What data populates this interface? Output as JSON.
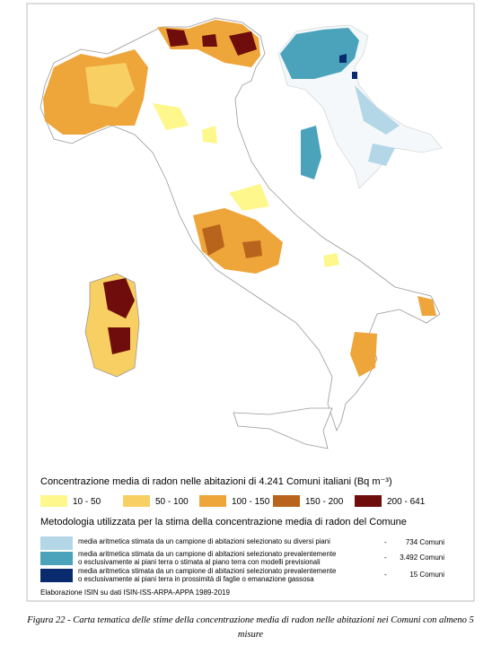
{
  "legend": {
    "title": "Concentrazione media di radon nelle abitazioni di 4.241 Comuni italiani (Bq m⁻³)",
    "classes": [
      {
        "label": "10 - 50",
        "color": "#fdf78c"
      },
      {
        "label": "50 - 100",
        "color": "#f8cf63"
      },
      {
        "label": "100 - 150",
        "color": "#eea53a"
      },
      {
        "label": "150 - 200",
        "color": "#b9641c"
      },
      {
        "label": "200 - 641",
        "color": "#6e0d0b"
      }
    ],
    "method_title": "Metodologia utilizzata per la stima della concentrazione media di radon del Comune",
    "separator": "-",
    "methods": [
      {
        "lines": [
          "media aritmetica stimata da un campione di abitazioni selezionato su diversi piani"
        ],
        "count": "734 Comuni",
        "color": "#b4d7e8"
      },
      {
        "lines": [
          "media aritmetica stimata da un campione di abitazioni selezionato prevalentemente",
          "o esclusivamente ai piani terra o stimata al piano terra con modelli previsionali"
        ],
        "count": "3.492 Comuni",
        "color": "#4aa3bb"
      },
      {
        "lines": [
          "media aritmetica stimata da un campione di abitazioni selezionato prevalentemente",
          "o esclusivamente ai piani terra in prossimità di faglie o emanazione gassosa"
        ],
        "count": "15 Comuni",
        "color": "#0a2a6e"
      }
    ],
    "source": "Elaborazione ISIN su dati ISIN-ISS-ARPA-APPA 1989-2019"
  },
  "caption": {
    "lines": [
      "Figura 22 - Carta tematica delle stime della concentrazione media di radon nelle abitazioni nei Comuni con almeno 5",
      "misure"
    ]
  }
}
